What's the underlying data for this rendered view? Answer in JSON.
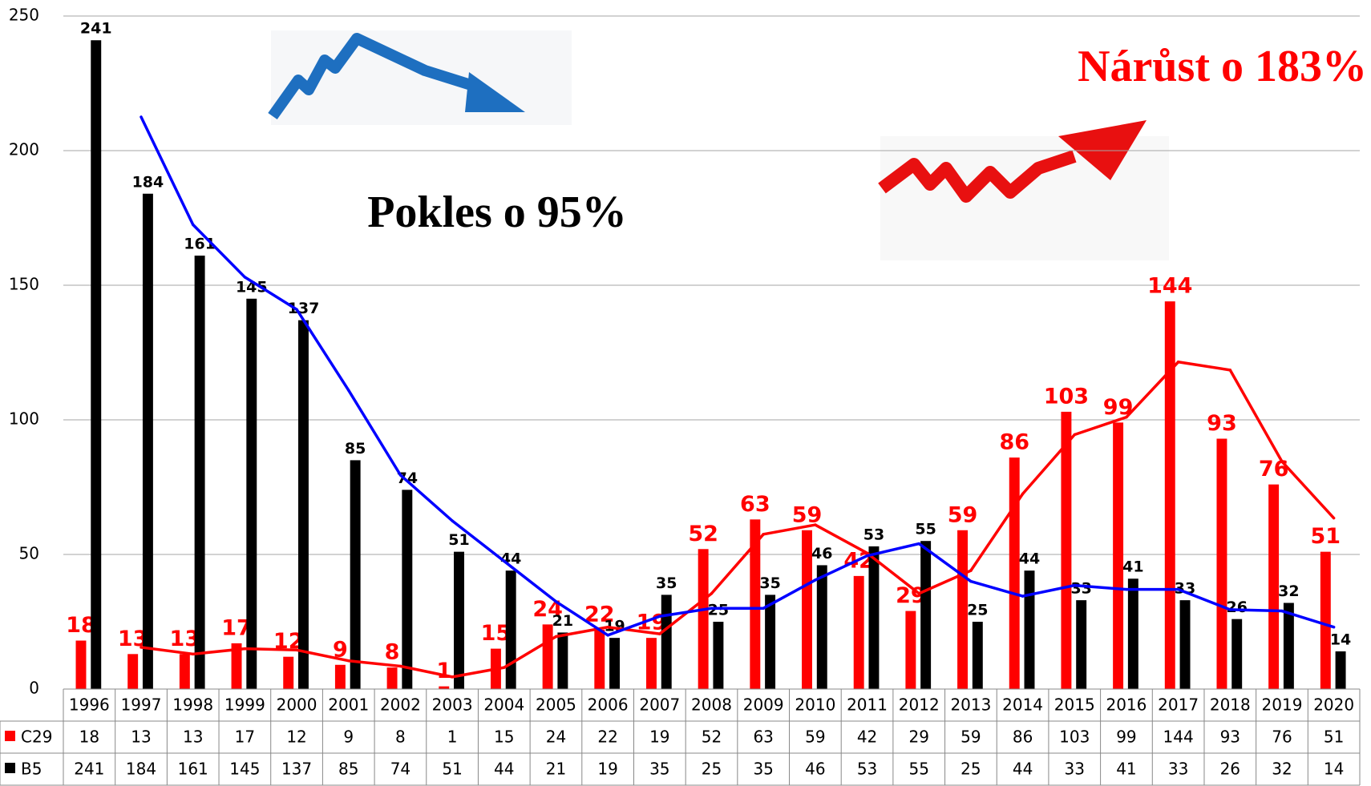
{
  "chart_data": {
    "type": "bar",
    "annotations": [
      "Pokles o 95%",
      "Nárůst o 183%"
    ],
    "categories": [
      "1996",
      "1997",
      "1998",
      "1999",
      "2000",
      "2001",
      "2002",
      "2003",
      "2004",
      "2005",
      "2006",
      "2007",
      "2008",
      "2009",
      "2010",
      "2011",
      "2012",
      "2013",
      "2014",
      "2015",
      "2016",
      "2017",
      "2018",
      "2019",
      "2020"
    ],
    "series": [
      {
        "name": "C29",
        "color": "#ff0000",
        "values": [
          18,
          13,
          13,
          17,
          12,
          9,
          8,
          1,
          15,
          24,
          22,
          19,
          52,
          63,
          59,
          42,
          29,
          59,
          86,
          103,
          99,
          144,
          93,
          76,
          51
        ],
        "trendline": {
          "type": "moving_average",
          "period": 2,
          "color": "#ff0000"
        }
      },
      {
        "name": "B5",
        "color": "#000000",
        "values": [
          241,
          184,
          161,
          145,
          137,
          85,
          74,
          51,
          44,
          21,
          19,
          35,
          25,
          35,
          46,
          53,
          55,
          25,
          44,
          33,
          41,
          33,
          26,
          32,
          14
        ],
        "trendline": {
          "type": "moving_average",
          "period": 2,
          "color": "#0000ff"
        }
      }
    ],
    "ylim": [
      0,
      250
    ],
    "yticks": [
      0,
      50,
      100,
      150,
      200,
      250
    ],
    "grid": true,
    "data_table": true
  }
}
